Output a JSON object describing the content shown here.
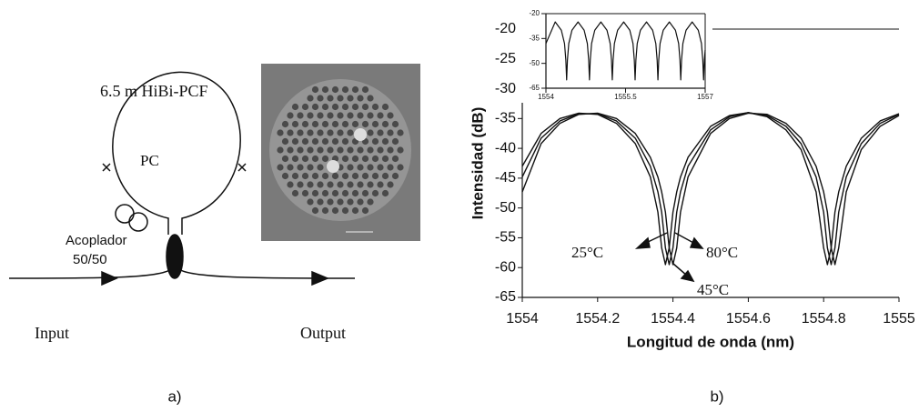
{
  "diagram": {
    "fiber_label": "6.5 m HiBi-PCF",
    "pc_label": "PC",
    "coupler_label": "Acoplador",
    "coupler_ratio": "50/50",
    "input_label": "Input",
    "output_label": "Output"
  },
  "captions": [
    "a)",
    "b)"
  ],
  "chart_data": [
    {
      "type": "line",
      "x_label": "Longitud de onda (nm)",
      "y_label": "Intensidad (dB)",
      "xlim": [
        1554,
        1555
      ],
      "xticks": [
        1554,
        1554.2,
        1554.4,
        1554.6,
        1554.8,
        1555
      ],
      "ylim": [
        -65,
        -20
      ],
      "yticks": [
        -65,
        -60,
        -55,
        -50,
        -45,
        -40,
        -35,
        -30,
        -25,
        -20
      ],
      "x": [
        1554,
        1554.05,
        1554.1,
        1554.15,
        1554.2,
        1554.25,
        1554.3,
        1554.34,
        1554.36,
        1554.37,
        1554.38,
        1554.39,
        1554.4,
        1554.41,
        1554.42,
        1554.44,
        1554.5,
        1554.55,
        1554.6,
        1554.65,
        1554.7,
        1554.74,
        1554.78,
        1554.8,
        1554.81,
        1554.82,
        1554.83,
        1554.84,
        1554.86,
        1554.9,
        1554.95,
        1555
      ],
      "series": [
        {
          "name": "25°C",
          "color": "#111111",
          "values": [
            -43.0,
            -37.5,
            -35.0,
            -34.1,
            -34.3,
            -35.8,
            -39.2,
            -44.8,
            -50.7,
            -56.7,
            -59.5,
            -56.7,
            -50.7,
            -47.3,
            -44.8,
            -41.5,
            -36.3,
            -34.5,
            -34.0,
            -34.7,
            -36.9,
            -40.2,
            -47.3,
            -56.7,
            -59.5,
            -56.7,
            -50.7,
            -47.3,
            -43.0,
            -38.3,
            -35.4,
            -34.2
          ]
        },
        {
          "name": "45°C",
          "color": "#111111",
          "values": [
            -44.8,
            -38.3,
            -35.4,
            -34.2,
            -34.2,
            -35.4,
            -38.3,
            -43.0,
            -47.3,
            -50.7,
            -56.7,
            -59.5,
            -56.7,
            -50.7,
            -47.3,
            -43.0,
            -36.9,
            -34.7,
            -34.0,
            -34.5,
            -36.3,
            -39.2,
            -44.8,
            -50.7,
            -56.7,
            -59.5,
            -56.7,
            -50.7,
            -44.8,
            -39.2,
            -35.8,
            -34.3
          ]
        },
        {
          "name": "80°C",
          "color": "#111111",
          "values": [
            -47.3,
            -39.2,
            -35.8,
            -34.3,
            -34.1,
            -35.0,
            -37.5,
            -41.5,
            -44.8,
            -47.3,
            -50.7,
            -56.7,
            -59.5,
            -56.7,
            -50.7,
            -44.8,
            -37.5,
            -35.0,
            -34.1,
            -34.3,
            -35.8,
            -38.3,
            -43.0,
            -47.3,
            -50.7,
            -56.7,
            -59.5,
            -56.7,
            -47.3,
            -40.2,
            -36.3,
            -34.5
          ]
        }
      ]
    },
    {
      "type": "line",
      "xlim": [
        1554,
        1557
      ],
      "xticks": [
        1554,
        1555.5,
        1557
      ],
      "ylim": [
        -65,
        -20
      ],
      "yticks": [
        -65,
        -50,
        -35,
        -20
      ],
      "x": [
        1554,
        1554.175,
        1554.29,
        1554.35,
        1554.375,
        1554.39,
        1554.405,
        1554.43,
        1554.49,
        1554.605,
        1554.72,
        1554.78,
        1554.805,
        1554.82,
        1554.835,
        1554.86,
        1554.92,
        1555.035,
        1555.15,
        1555.21,
        1555.235,
        1555.25,
        1555.265,
        1555.29,
        1555.35,
        1555.465,
        1555.58,
        1555.64,
        1555.665,
        1555.68,
        1555.695,
        1555.72,
        1555.78,
        1555.895,
        1556.01,
        1556.07,
        1556.095,
        1556.11,
        1556.125,
        1556.15,
        1556.21,
        1556.325,
        1556.44,
        1556.5,
        1556.525,
        1556.54,
        1556.555,
        1556.58,
        1556.64,
        1556.755,
        1556.87,
        1556.93,
        1556.955,
        1556.97,
        1556.985,
        1557
      ],
      "series": [
        {
          "color": "#111111",
          "values": [
            -38,
            -25,
            -30,
            -38,
            -48,
            -60,
            -48,
            -38,
            -30,
            -25,
            -30,
            -38,
            -48,
            -60,
            -48,
            -38,
            -30,
            -25,
            -30,
            -38,
            -48,
            -60,
            -48,
            -38,
            -30,
            -25,
            -30,
            -38,
            -48,
            -60,
            -48,
            -38,
            -30,
            -25,
            -30,
            -38,
            -48,
            -60,
            -48,
            -38,
            -30,
            -25,
            -30,
            -38,
            -48,
            -60,
            -48,
            -38,
            -30,
            -25,
            -30,
            -38,
            -48,
            -60,
            -48,
            -42
          ]
        }
      ]
    }
  ]
}
